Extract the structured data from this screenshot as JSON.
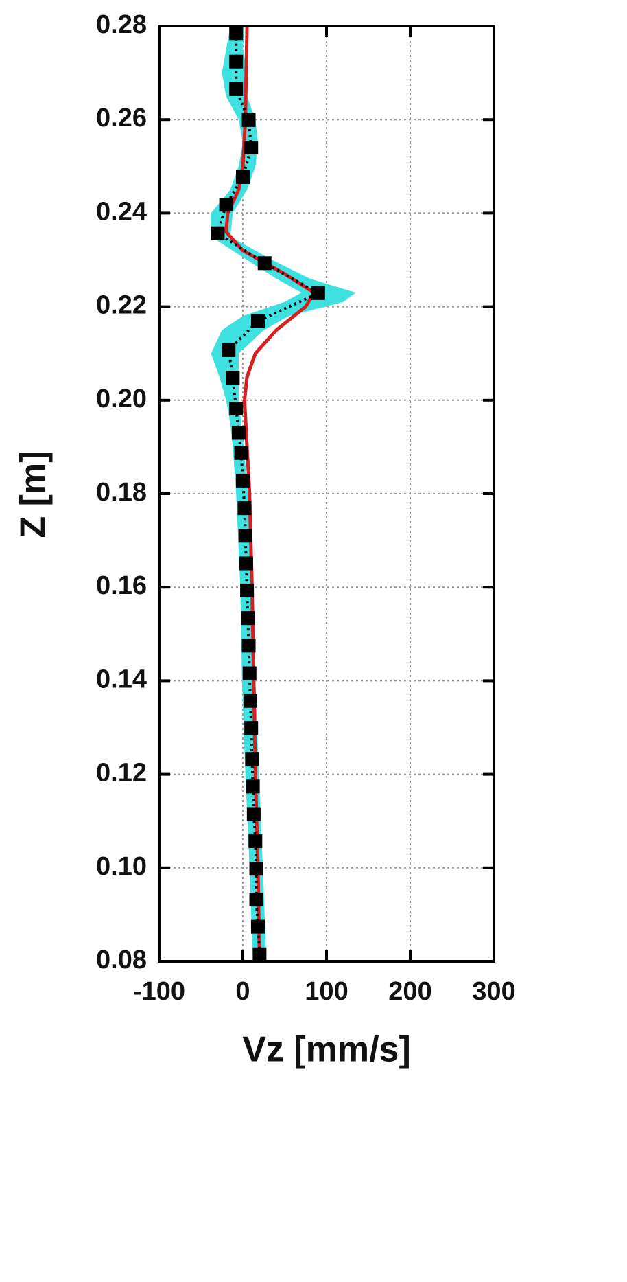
{
  "chart_data": {
    "type": "line",
    "xlabel": "Vz [mm/s]",
    "ylabel": "Z [m]",
    "xlim": [
      -100,
      300
    ],
    "xticks": [
      -100,
      0,
      100,
      200,
      300
    ],
    "ylim": [
      0.08,
      0.28
    ],
    "yticks": [
      0.08,
      {
        "value": 0.1,
        "label": "0.10"
      },
      0.12,
      0.14,
      0.16,
      0.18,
      {
        "value": 0.2,
        "label": "0.20"
      },
      0.22,
      0.24,
      0.26,
      0.28
    ],
    "grid": true,
    "band": {
      "color": "#3ee0e0",
      "z": [
        0.08,
        0.1,
        0.12,
        0.14,
        0.16,
        0.18,
        0.19,
        0.195,
        0.2,
        0.205,
        0.21,
        0.215,
        0.218,
        0.221,
        0.223,
        0.226,
        0.23,
        0.235,
        0.24,
        0.245,
        0.25,
        0.255,
        0.26,
        0.265,
        0.27,
        0.275,
        0.28
      ],
      "lower": [
        12,
        8,
        3,
        -1,
        -3,
        -8,
        -12,
        -15,
        -20,
        -28,
        -38,
        -25,
        0,
        50,
        70,
        40,
        5,
        -38,
        -38,
        -15,
        -5,
        0,
        -5,
        -20,
        -25,
        -20,
        -15
      ],
      "upper": [
        28,
        24,
        19,
        15,
        11,
        6,
        1,
        -2,
        -5,
        -5,
        -5,
        25,
        55,
        120,
        135,
        80,
        35,
        -15,
        -12,
        5,
        15,
        18,
        15,
        5,
        5,
        0,
        2
      ]
    },
    "series": [
      {
        "color": "#d42020",
        "line_style": "solid",
        "z": [
          0.08,
          0.1,
          0.12,
          0.14,
          0.16,
          0.18,
          0.19,
          0.2,
          0.205,
          0.21,
          0.215,
          0.22,
          0.223,
          0.227,
          0.232,
          0.236,
          0.24,
          0.245,
          0.25,
          0.26,
          0.27,
          0.28
        ],
        "values": [
          20,
          18,
          15,
          13,
          11,
          8,
          5,
          2,
          5,
          15,
          40,
          75,
          85,
          50,
          0,
          -20,
          -18,
          -5,
          0,
          3,
          4,
          5
        ]
      },
      {
        "color": "#000000",
        "line_style": "dotted",
        "marker": "square",
        "z": [
          0.0815,
          0.0874,
          0.0932,
          0.0998,
          0.1057,
          0.1115,
          0.1174,
          0.1233,
          0.1299,
          0.1357,
          0.1416,
          0.1475,
          0.1534,
          0.1593,
          0.1651,
          0.171,
          0.1769,
          0.1828,
          0.1887,
          0.193,
          0.1982,
          0.2048,
          0.2107,
          0.2169,
          0.2229,
          0.2293,
          0.2357,
          0.2418,
          0.2477,
          0.254,
          0.2599,
          0.2665,
          0.2724,
          0.2785
        ],
        "values": [
          20,
          18,
          16,
          16,
          15,
          13,
          12,
          11,
          10,
          9,
          8,
          7,
          6,
          5,
          4,
          3,
          2,
          0,
          -2,
          -5,
          -8,
          -12,
          -17,
          18,
          90,
          26,
          -30,
          -20,
          0,
          10,
          7,
          -8,
          -8,
          -8
        ]
      }
    ]
  }
}
